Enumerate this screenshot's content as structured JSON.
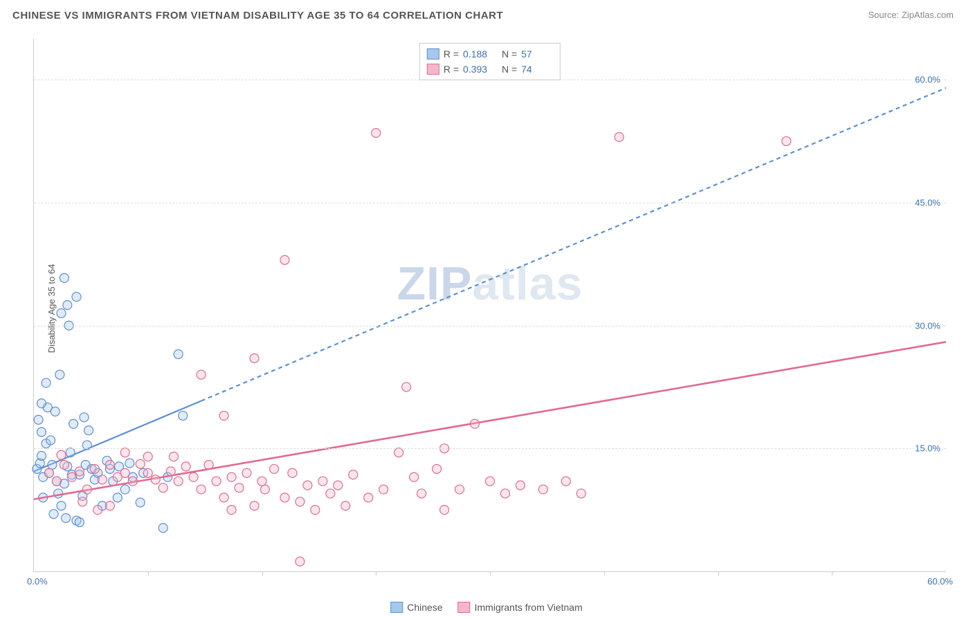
{
  "title": "CHINESE VS IMMIGRANTS FROM VIETNAM DISABILITY AGE 35 TO 64 CORRELATION CHART",
  "source_label": "Source: ZipAtlas.com",
  "y_axis_label": "Disability Age 35 to 64",
  "watermark": {
    "part1": "ZIP",
    "part2": "atlas"
  },
  "chart": {
    "type": "scatter",
    "xlim": [
      0,
      60
    ],
    "ylim": [
      0,
      65
    ],
    "x_min_label": "0.0%",
    "x_max_label": "60.0%",
    "y_gridlines": [
      {
        "value": 15,
        "label": "15.0%"
      },
      {
        "value": 30,
        "label": "30.0%"
      },
      {
        "value": 45,
        "label": "45.0%"
      },
      {
        "value": 60,
        "label": "60.0%"
      }
    ],
    "x_ticks": [
      7.5,
      15,
      22.5,
      30,
      37.5,
      45,
      52.5
    ],
    "background_color": "#ffffff",
    "grid_color": "#dddddd",
    "axis_color": "#cccccc",
    "label_color": "#3b6fb6",
    "marker_radius": 6.5,
    "marker_stroke_width": 1.2,
    "marker_fill_opacity": 0.35,
    "series": [
      {
        "id": "chinese",
        "label": "Chinese",
        "color_stroke": "#5b8fd6",
        "color_fill": "#a9c7ec",
        "R": "0.188",
        "N": "57",
        "trend": {
          "solid": {
            "x1": 0,
            "y1": 12.2,
            "x2": 11,
            "y2": 20.8
          },
          "dashed": {
            "x1": 11,
            "y1": 20.8,
            "x2": 60,
            "y2": 59.0
          },
          "stroke_width": 2.2,
          "dash": "6 5"
        },
        "points": [
          [
            0.2,
            12.5
          ],
          [
            0.4,
            13.2
          ],
          [
            0.5,
            14.1
          ],
          [
            0.6,
            11.5
          ],
          [
            0.8,
            15.6
          ],
          [
            0.3,
            18.5
          ],
          [
            0.5,
            17.0
          ],
          [
            1.0,
            12.0
          ],
          [
            1.2,
            13.0
          ],
          [
            1.5,
            11.0
          ],
          [
            1.6,
            9.5
          ],
          [
            1.8,
            8.0
          ],
          [
            2.0,
            10.7
          ],
          [
            2.2,
            12.8
          ],
          [
            2.4,
            14.5
          ],
          [
            2.5,
            11.8
          ],
          [
            2.8,
            6.2
          ],
          [
            3.0,
            6.0
          ],
          [
            3.2,
            9.2
          ],
          [
            3.4,
            13.0
          ],
          [
            3.5,
            15.4
          ],
          [
            3.6,
            17.2
          ],
          [
            4.0,
            11.2
          ],
          [
            4.2,
            12.0
          ],
          [
            4.5,
            8.0
          ],
          [
            5.0,
            12.5
          ],
          [
            5.2,
            11.0
          ],
          [
            5.5,
            9.0
          ],
          [
            6.0,
            10.0
          ],
          [
            6.5,
            11.5
          ],
          [
            7.0,
            8.4
          ],
          [
            7.2,
            12.0
          ],
          [
            8.5,
            5.3
          ],
          [
            8.8,
            11.5
          ],
          [
            0.9,
            20.0
          ],
          [
            1.4,
            19.5
          ],
          [
            2.6,
            18.0
          ],
          [
            3.3,
            18.8
          ],
          [
            0.8,
            23.0
          ],
          [
            1.7,
            24.0
          ],
          [
            0.5,
            20.5
          ],
          [
            1.8,
            31.5
          ],
          [
            2.3,
            30.0
          ],
          [
            2.8,
            33.5
          ],
          [
            2.2,
            32.5
          ],
          [
            2.0,
            35.8
          ],
          [
            9.5,
            26.5
          ],
          [
            9.8,
            19.0
          ],
          [
            3.0,
            11.8
          ],
          [
            3.8,
            12.5
          ],
          [
            4.8,
            13.5
          ],
          [
            5.6,
            12.8
          ],
          [
            6.3,
            13.2
          ],
          [
            1.1,
            16.0
          ],
          [
            0.6,
            9.0
          ],
          [
            1.3,
            7.0
          ],
          [
            2.1,
            6.5
          ]
        ]
      },
      {
        "id": "vietnam",
        "label": "Immigrants from Vietnam",
        "color_stroke": "#e36a8f",
        "color_fill": "#f4b7c9",
        "R": "0.393",
        "N": "74",
        "trend": {
          "solid": {
            "x1": 0,
            "y1": 8.8,
            "x2": 60,
            "y2": 28.0
          },
          "dashed": null,
          "stroke_width": 2.6,
          "dash": null
        },
        "points": [
          [
            1.0,
            12.0
          ],
          [
            1.5,
            11.0
          ],
          [
            2.0,
            13.0
          ],
          [
            2.5,
            11.5
          ],
          [
            3.0,
            12.2
          ],
          [
            3.5,
            10.0
          ],
          [
            4.0,
            12.5
          ],
          [
            4.5,
            11.2
          ],
          [
            5.0,
            13.0
          ],
          [
            5.5,
            11.5
          ],
          [
            6.0,
            12.0
          ],
          [
            6.5,
            11.0
          ],
          [
            7.0,
            13.1
          ],
          [
            7.5,
            12.0
          ],
          [
            8.0,
            11.2
          ],
          [
            8.5,
            10.2
          ],
          [
            9.0,
            12.2
          ],
          [
            9.5,
            11.0
          ],
          [
            10.0,
            12.8
          ],
          [
            10.5,
            11.5
          ],
          [
            11.0,
            10.0
          ],
          [
            11.5,
            13.0
          ],
          [
            12.0,
            11.0
          ],
          [
            12.5,
            9.0
          ],
          [
            13.0,
            7.5
          ],
          [
            13.0,
            11.5
          ],
          [
            13.5,
            10.2
          ],
          [
            14.0,
            12.0
          ],
          [
            14.5,
            8.0
          ],
          [
            15.0,
            11.0
          ],
          [
            15.2,
            10.0
          ],
          [
            15.8,
            12.5
          ],
          [
            16.5,
            9.0
          ],
          [
            17.0,
            12.0
          ],
          [
            17.5,
            8.5
          ],
          [
            18.0,
            10.5
          ],
          [
            18.5,
            7.5
          ],
          [
            19.0,
            11.0
          ],
          [
            19.5,
            9.5
          ],
          [
            20.0,
            10.5
          ],
          [
            20.5,
            8.0
          ],
          [
            21.0,
            11.8
          ],
          [
            22.0,
            9.0
          ],
          [
            23.0,
            10.0
          ],
          [
            24.0,
            14.5
          ],
          [
            25.0,
            11.5
          ],
          [
            25.5,
            9.5
          ],
          [
            26.5,
            12.5
          ],
          [
            27.0,
            7.5
          ],
          [
            28.0,
            10.0
          ],
          [
            29.0,
            18.0
          ],
          [
            30.0,
            11.0
          ],
          [
            31.0,
            9.5
          ],
          [
            32.0,
            10.5
          ],
          [
            33.5,
            10.0
          ],
          [
            35.0,
            11.0
          ],
          [
            36.0,
            9.5
          ],
          [
            11.0,
            24.0
          ],
          [
            12.5,
            19.0
          ],
          [
            14.5,
            26.0
          ],
          [
            24.5,
            22.5
          ],
          [
            27.0,
            15.0
          ],
          [
            38.5,
            53.0
          ],
          [
            16.5,
            38.0
          ],
          [
            22.5,
            53.5
          ],
          [
            17.5,
            1.2
          ],
          [
            6.0,
            14.5
          ],
          [
            7.5,
            14.0
          ],
          [
            9.2,
            14.0
          ],
          [
            3.2,
            8.5
          ],
          [
            4.2,
            7.5
          ],
          [
            5.0,
            8.0
          ],
          [
            49.5,
            52.5
          ],
          [
            1.8,
            14.2
          ]
        ]
      }
    ]
  }
}
